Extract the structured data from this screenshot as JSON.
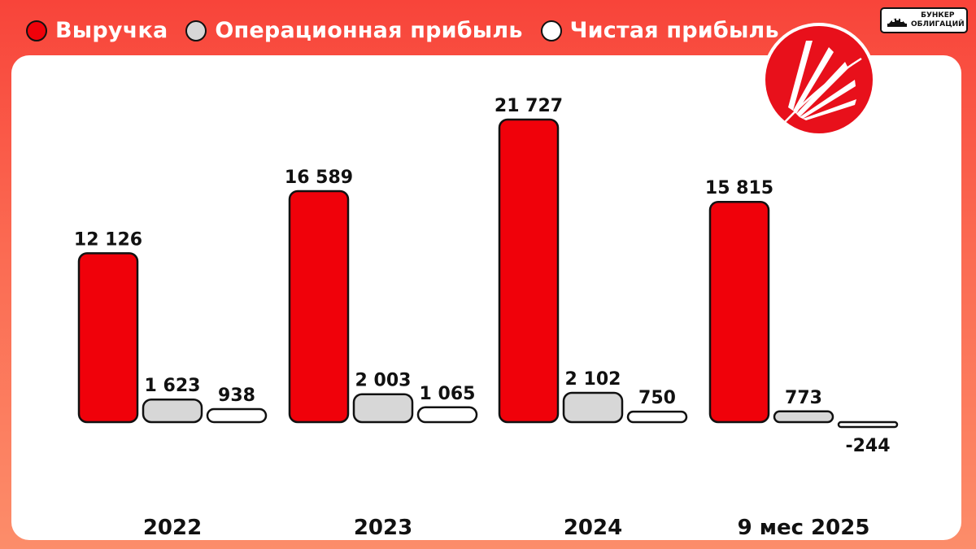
{
  "legend": [
    {
      "label": "Выручка",
      "color": "#f0010a"
    },
    {
      "label": "Операционная прибыль",
      "color": "#d7d7d7"
    },
    {
      "label": "Чистая прибыль",
      "color": "#ffffff"
    }
  ],
  "brand": {
    "line1": "БУНКЕР",
    "line2": "ОБЛИГАЦИЙ",
    "logo_icon": "company-logo-icon"
  },
  "chart_data": {
    "type": "bar",
    "categories": [
      "2022",
      "2023",
      "2024",
      "9 мес 2025"
    ],
    "series": [
      {
        "name": "Выручка",
        "color": "#f0010a",
        "values": [
          12126,
          16589,
          21727,
          15815
        ],
        "labels": [
          "12 126",
          "16 589",
          "21 727",
          "15 815"
        ]
      },
      {
        "name": "Операционная прибыль",
        "color": "#d7d7d7",
        "values": [
          1623,
          2003,
          2102,
          773
        ],
        "labels": [
          "1 623",
          "2 003",
          "2 102",
          "773"
        ]
      },
      {
        "name": "Чистая прибыль",
        "color": "#ffffff",
        "values": [
          938,
          1065,
          750,
          -244
        ],
        "labels": [
          "938",
          "1 065",
          "750",
          "-244"
        ]
      }
    ],
    "title": "",
    "xlabel": "",
    "ylabel": "",
    "ylim": [
      -244,
      21727
    ],
    "grid": false,
    "legend_position": "top-left"
  }
}
